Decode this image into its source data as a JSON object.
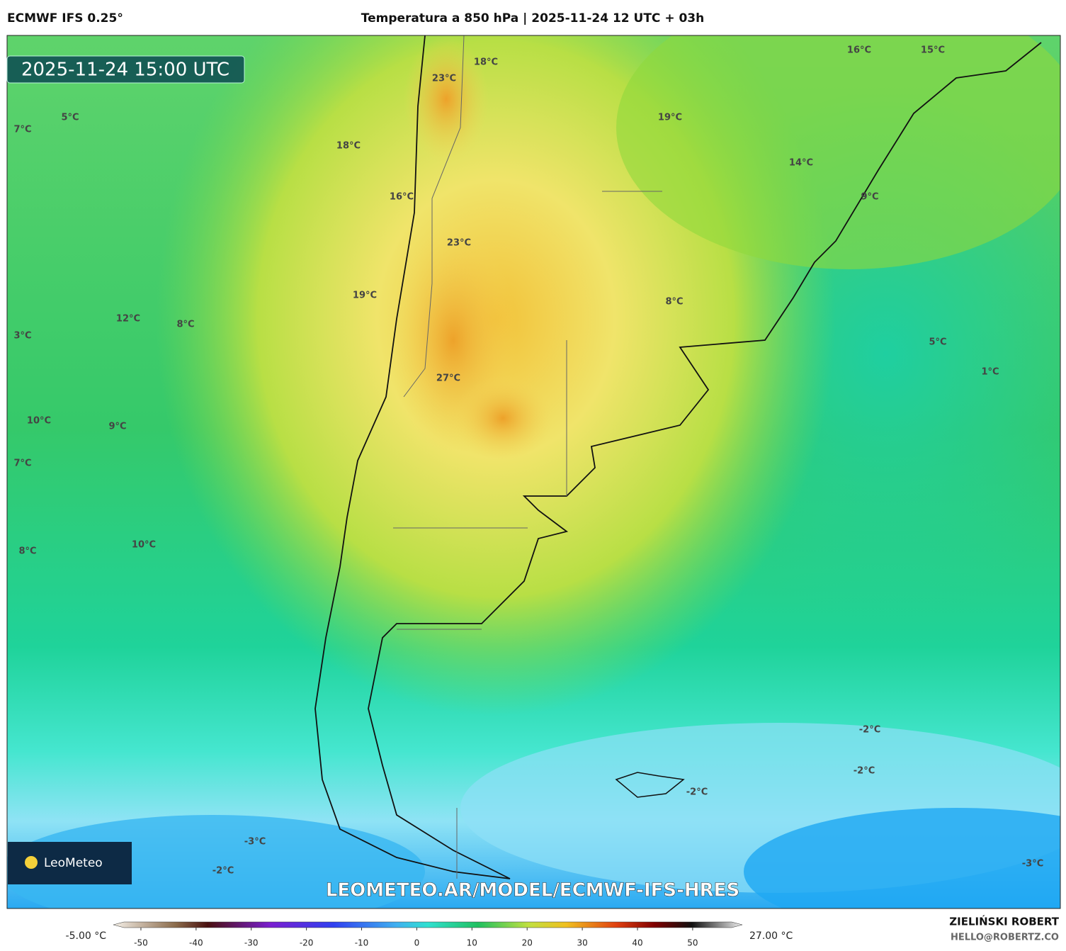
{
  "header": {
    "model": "ECMWF IFS 0.25°",
    "title": "Temperatura a 850 hPa | 2025-11-24 12 UTC + 03h"
  },
  "map": {
    "timestamp": "2025-11-24 15:00 UTC",
    "labels": [
      "23°C",
      "18°C",
      "16°C",
      "15°C",
      "7°C",
      "5°C",
      "18°C",
      "19°C",
      "14°C",
      "16°C",
      "9°C",
      "23°C",
      "19°C",
      "12°C",
      "8°C",
      "8°C",
      "3°C",
      "5°C",
      "1°C",
      "27°C",
      "10°C",
      "9°C",
      "7°C",
      "8°C",
      "10°C",
      "-2°C",
      "-2°C",
      "-2°C",
      "-3°C",
      "-2°C",
      "-3°C"
    ],
    "logo": "LeoMeteo",
    "url": "LEOMETEO.AR/MODEL/ECMWF-IFS-HRES"
  },
  "colorbar": {
    "min_label": "-5.00 °C",
    "max_label": "27.00 °C",
    "lim": [
      -55,
      59
    ],
    "ticks": [
      -50,
      -40,
      -30,
      -20,
      -10,
      0,
      10,
      20,
      30,
      40,
      50
    ]
  },
  "footer": {
    "author": "ZIELIŃSKI ROBERT",
    "email": "HELLO@ROBERTZ.CO"
  }
}
